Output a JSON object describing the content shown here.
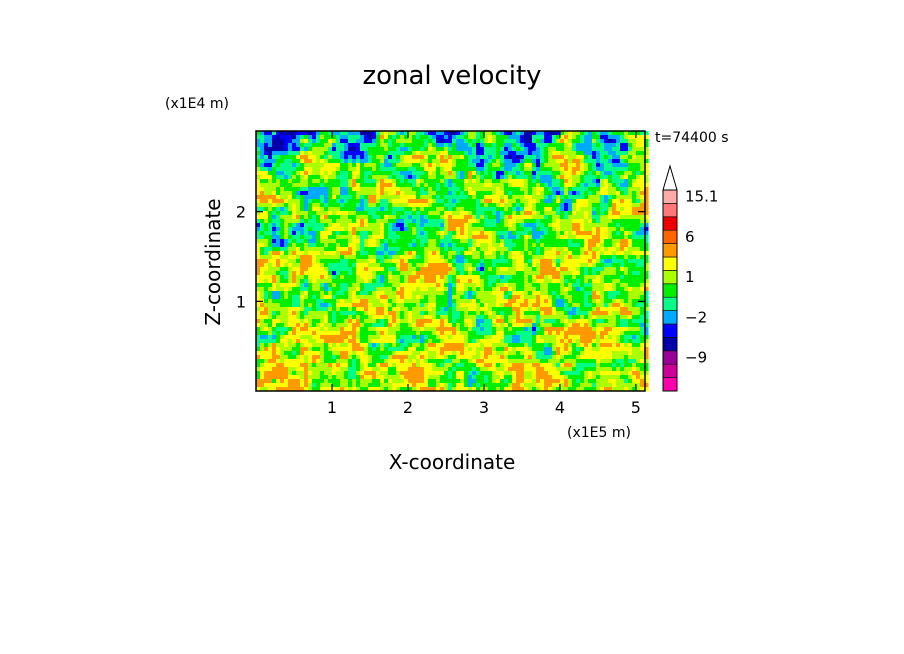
{
  "chart_data": {
    "type": "heatmap",
    "title": "zonal velocity",
    "xlabel": "X-coordinate",
    "ylabel": "Z-coordinate",
    "x_scale_note": "(x1E5 m)",
    "y_scale_note": "(x1E4 m)",
    "time_label": "t=74400 s",
    "xlim": [
      0,
      5.12
    ],
    "ylim": [
      0,
      2.9
    ],
    "x_ticks": [
      1,
      2,
      3,
      4,
      5
    ],
    "x_tick_labels": [
      "1",
      "2",
      "3",
      "4",
      "5"
    ],
    "y_ticks": [
      1,
      2
    ],
    "y_tick_labels": [
      "1",
      "2"
    ],
    "colorbar": {
      "levels": [
        -15.1,
        -12,
        -9,
        -6,
        -3,
        -2,
        -1,
        0,
        1,
        2,
        3,
        6,
        9,
        12,
        15.1
      ],
      "colors": [
        "#ff00aa",
        "#cc0099",
        "#990099",
        "#0000aa",
        "#0000ff",
        "#00aaff",
        "#00ff88",
        "#00ee00",
        "#aaff00",
        "#ffff00",
        "#ff9900",
        "#ff6600",
        "#ee0000",
        "#ff7777",
        "#ffaaaa"
      ],
      "tick_labels": [
        {
          "value": 15.1,
          "label": "15.1"
        },
        {
          "value": 6,
          "label": "6"
        },
        {
          "value": 1,
          "label": "1"
        },
        {
          "value": -2,
          "label": "−2"
        },
        {
          "value": -9,
          "label": "−9"
        }
      ],
      "extend": "max"
    },
    "grid": false
  }
}
